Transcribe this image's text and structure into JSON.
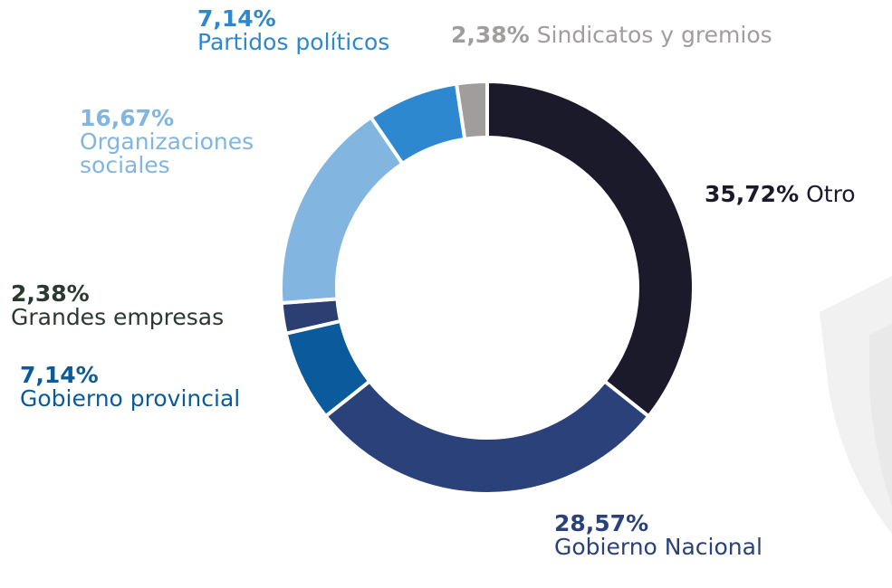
{
  "chart_data": {
    "type": "pie",
    "categories": [
      "Otro",
      "Gobierno Nacional",
      "Gobierno provincial",
      "Grandes empresas",
      "Organizaciones sociales",
      "Partidos políticos",
      "Sindicatos y gremios"
    ],
    "values": [
      35.72,
      28.57,
      7.14,
      2.38,
      16.67,
      7.14,
      2.38
    ],
    "value_labels": [
      "35,72%",
      "28,57%",
      "7,14%",
      "2,38%",
      "16,67%",
      "7,14%",
      "2,38%"
    ],
    "colors": [
      "#1b1a2b",
      "#2b417a",
      "#0a5a9c",
      "#2b3f72",
      "#82b5df",
      "#2d88cf",
      "#a09d9c"
    ],
    "donut": true
  }
}
